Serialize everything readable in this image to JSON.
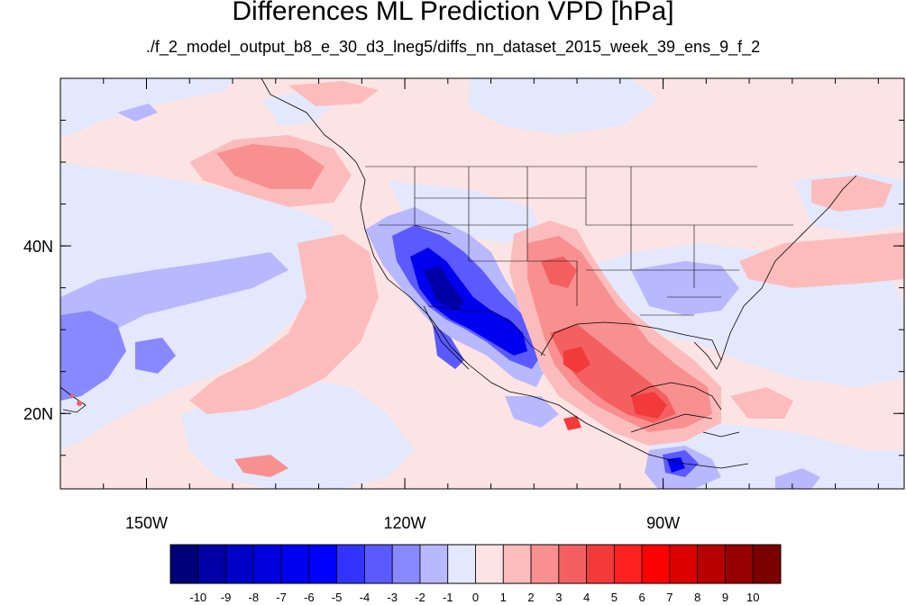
{
  "title": "Differences ML Prediction VPD [hPa]",
  "subtitle": "./f_2_model_output_b8_e_30_d3_lneg5/diffs_nn_dataset_2015_week_39_ens_9_f_2",
  "map": {
    "lon_range": [
      -160,
      -62
    ],
    "lat_range": [
      11,
      60
    ],
    "x_ticks": [
      {
        "lon": -150,
        "label": "150W"
      },
      {
        "lon": -120,
        "label": "120W"
      },
      {
        "lon": -90,
        "label": "90W"
      }
    ],
    "y_ticks": [
      {
        "lat": 40,
        "label": "40N"
      },
      {
        "lat": 20,
        "label": "20N"
      }
    ]
  },
  "colorbar": {
    "labels": [
      "-10",
      "-9",
      "-8",
      "-7",
      "-6",
      "-5",
      "-4",
      "-3",
      "-2",
      "-1",
      "0",
      "1",
      "2",
      "3",
      "4",
      "5",
      "6",
      "7",
      "8",
      "9",
      "10"
    ],
    "colors": [
      "#00007a",
      "#0000a6",
      "#0000c6",
      "#0000de",
      "#0000f0",
      "#0000ff",
      "#3333ff",
      "#5a5aff",
      "#8888ff",
      "#b8b8ff",
      "#e4e8fc",
      "#fde4e4",
      "#fcbcbc",
      "#f89090",
      "#f46060",
      "#f23a3a",
      "#ff2020",
      "#ff0000",
      "#dd0000",
      "#b80000",
      "#960000",
      "#7a0000"
    ]
  }
}
